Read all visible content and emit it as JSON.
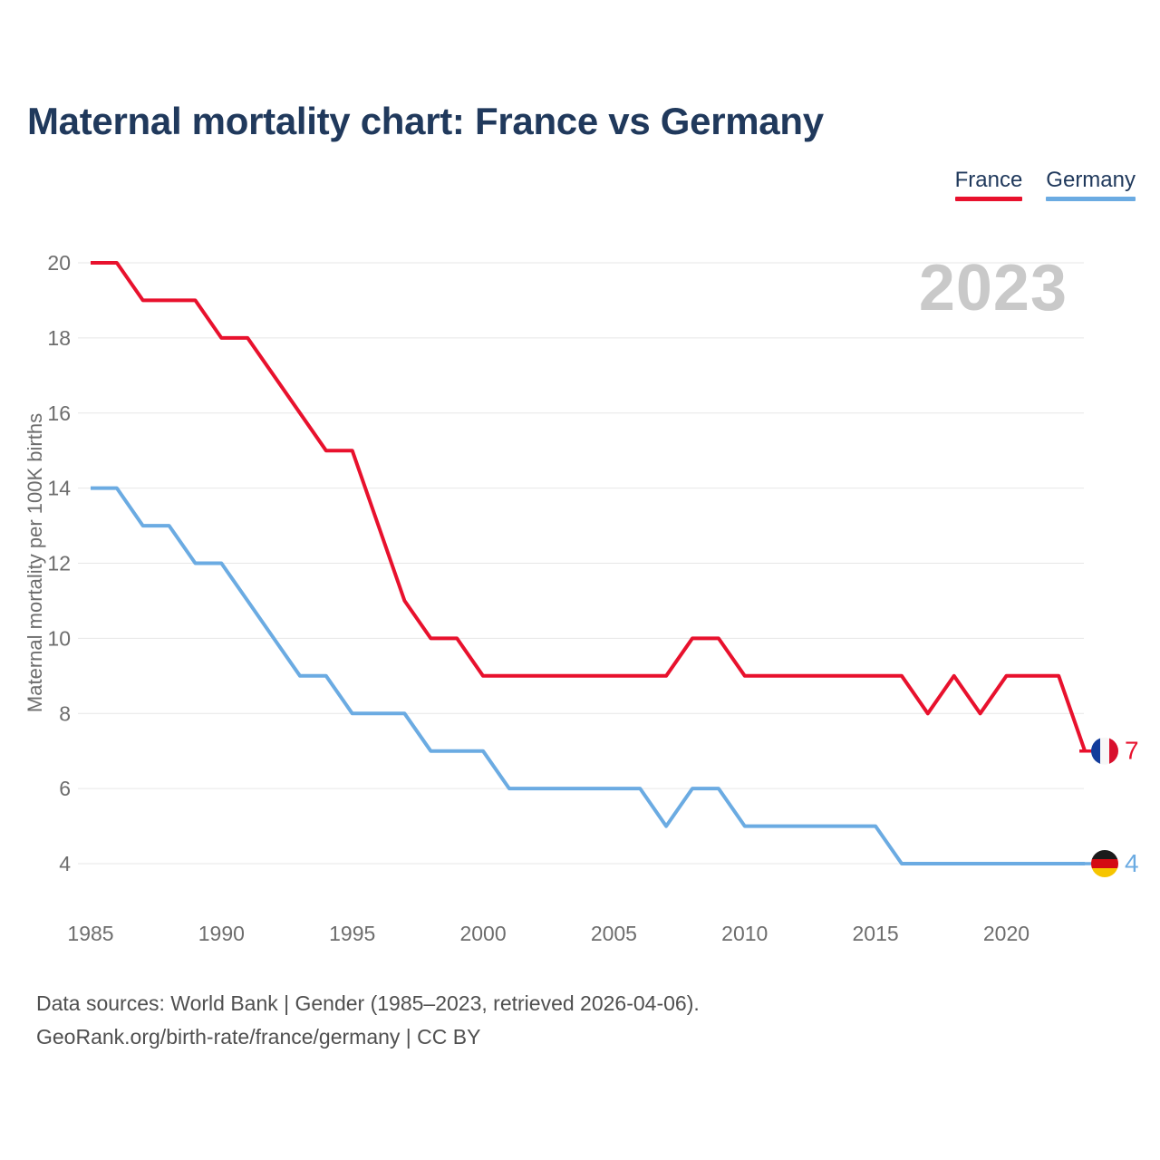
{
  "title": "Maternal mortality chart: France vs Germany",
  "watermark": "2023",
  "legend": {
    "items": [
      {
        "label": "France",
        "color": "#e8112d"
      },
      {
        "label": "Germany",
        "color": "#6babe2"
      }
    ]
  },
  "y_axis": {
    "title": "Maternal mortality per 100K births",
    "ticks": [
      4,
      6,
      8,
      10,
      12,
      14,
      16,
      18,
      20
    ],
    "range": [
      4,
      20
    ]
  },
  "x_axis": {
    "ticks": [
      1985,
      1990,
      1995,
      2000,
      2005,
      2010,
      2015,
      2020
    ],
    "range": [
      1985,
      2023
    ]
  },
  "chart_data": {
    "type": "line",
    "title": "Maternal mortality chart: France vs Germany",
    "xlabel": "",
    "ylabel": "Maternal mortality per 100K births",
    "ylim": [
      4,
      20
    ],
    "grid": true,
    "legend_position": "top-right",
    "x": [
      1985,
      1986,
      1987,
      1988,
      1989,
      1990,
      1991,
      1992,
      1993,
      1994,
      1995,
      1996,
      1997,
      1998,
      1999,
      2000,
      2001,
      2002,
      2003,
      2004,
      2005,
      2006,
      2007,
      2008,
      2009,
      2010,
      2011,
      2012,
      2013,
      2014,
      2015,
      2016,
      2017,
      2018,
      2019,
      2020,
      2021,
      2022,
      2023
    ],
    "series": [
      {
        "name": "France",
        "color": "#e8112d",
        "values": [
          20,
          20,
          19,
          19,
          19,
          18,
          18,
          17,
          16,
          15,
          15,
          13,
          11,
          10,
          10,
          9,
          9,
          9,
          9,
          9,
          9,
          9,
          9,
          10,
          10,
          9,
          9,
          9,
          9,
          9,
          9,
          9,
          8,
          9,
          8,
          9,
          9,
          9,
          7
        ],
        "end_label": "7",
        "flag": {
          "type": "france",
          "orientation": "vertical",
          "colors": [
            "#123c9b",
            "#f7f7f7",
            "#d80f2d"
          ]
        }
      },
      {
        "name": "Germany",
        "color": "#6babe2",
        "values": [
          14,
          14,
          13,
          13,
          12,
          12,
          11,
          10,
          9,
          9,
          8,
          8,
          8,
          7,
          7,
          7,
          6,
          6,
          6,
          6,
          6,
          6,
          5,
          6,
          6,
          5,
          5,
          5,
          5,
          5,
          5,
          4,
          4,
          4,
          4,
          4,
          4,
          4,
          4
        ],
        "end_label": "4",
        "flag": {
          "type": "germany",
          "orientation": "horizontal",
          "colors": [
            "#1b1b1b",
            "#d40a13",
            "#f6c500"
          ]
        }
      }
    ]
  },
  "footer": {
    "line1": "Data sources: World Bank | Gender (1985–2023, retrieved 2026-04-06).",
    "line2": "GeoRank.org/birth-rate/france/germany | CC BY"
  },
  "colors": {
    "title_text": "#20395c",
    "legend_text": "#20395c",
    "axis_text": "#6d6d6d",
    "gridline": "#e7e7e7",
    "watermark": "#c9c9c9",
    "footer_text": "#4f4f4f"
  }
}
